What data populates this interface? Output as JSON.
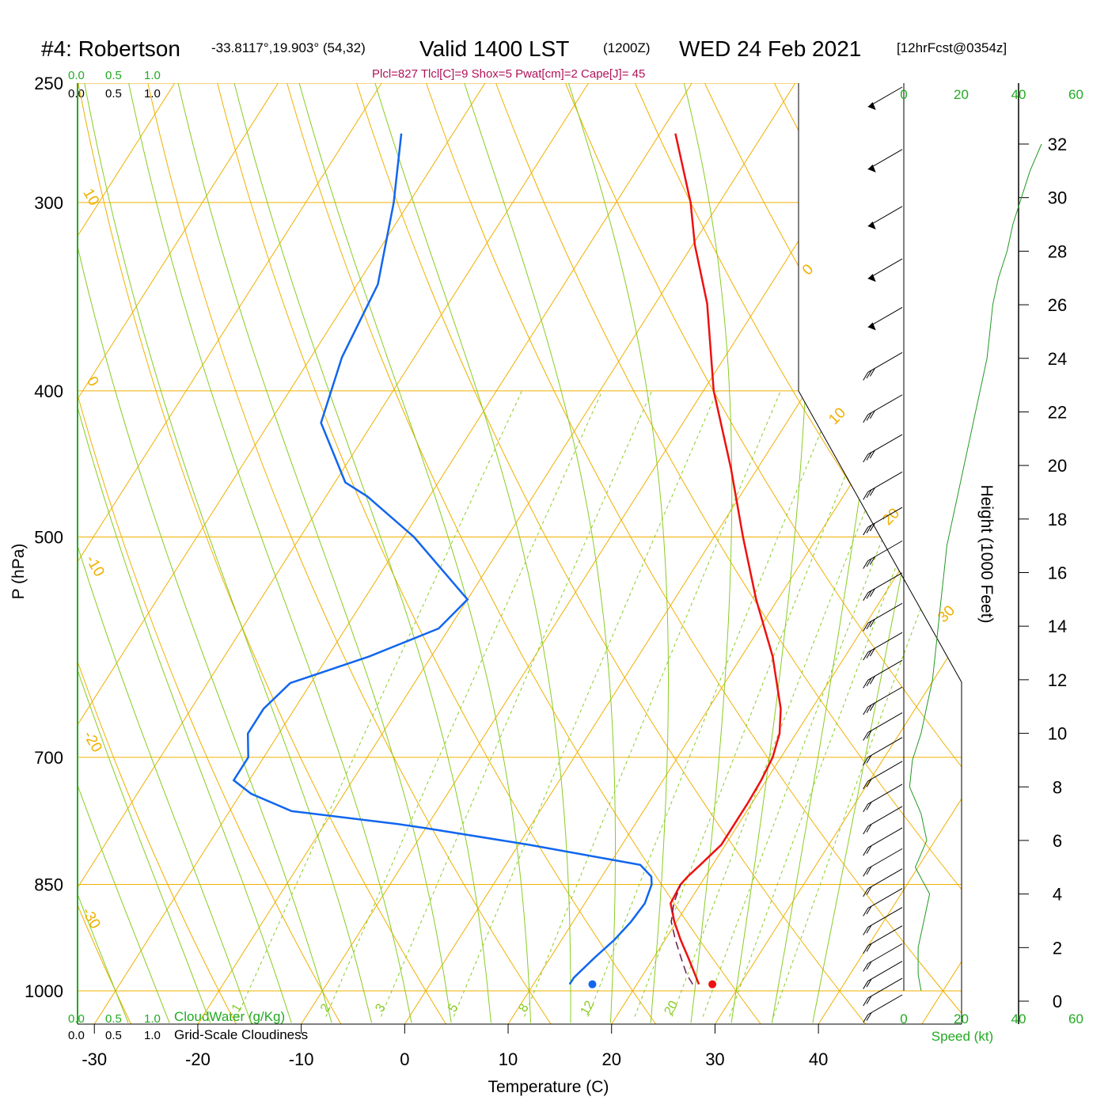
{
  "title": {
    "station": "#4: Robertson",
    "coords": "-33.8117°,19.903° (54,32)",
    "valid": "Valid 1400 LST",
    "utc": "(1200Z)",
    "date": "WED 24 Feb 2021",
    "forecast": "[12hrFcst@0354z]"
  },
  "params_line": "Plcl=827 Tlcl[C]=9 Shox=5 Pwat[cm]=2 Cape[J]= 45",
  "cloud_scale_top": {
    "green": [
      "0.0",
      "0.5",
      "1.0"
    ],
    "black": [
      "0.0",
      "0.5",
      "1.0"
    ]
  },
  "cloud_scale_bottom": {
    "green": [
      "0.0",
      "0.5",
      "1.0"
    ],
    "black": [
      "0.0",
      "0.5",
      "1.0"
    ],
    "cloudwater_label": "CloudWater (g/Kg)",
    "cloudiness_label": "Grid-Scale Cloudiness"
  },
  "speed_axis": {
    "top_ticks": [
      "0",
      "20",
      "40",
      "60"
    ],
    "bottom_ticks": [
      "0",
      "20",
      "40",
      "60"
    ],
    "label": "Speed (kt)"
  },
  "colors": {
    "temperature": "#ee1111",
    "dewpoint": "#1166ee",
    "isotherm": "#f0b000",
    "dry_adiabat": "#f0b000",
    "moist_adiabat": "#88cc22",
    "mixing_ratio": "#88cc22",
    "parcel": "#6a1a4a",
    "wind_speed": "#229922"
  },
  "chart_data": {
    "type": "line",
    "subtype": "skew-T log-P sounding",
    "xlabel": "Temperature (C)",
    "ylabel": "P (hPa)",
    "y2label": "Height (1000 Feet)",
    "y_scale": "log",
    "y_ticks": [
      250,
      300,
      400,
      500,
      700,
      850,
      1000
    ],
    "x_ticks": [
      -30,
      -20,
      -10,
      0,
      10,
      20,
      30,
      40
    ],
    "height_ticks": [
      0,
      2,
      4,
      6,
      8,
      10,
      12,
      14,
      16,
      18,
      20,
      22,
      24,
      26,
      28,
      30,
      32
    ],
    "isotherm_labels": [
      "10",
      "0",
      "-10",
      "-20",
      "-30",
      "0",
      "10",
      "20",
      "30"
    ],
    "mixing_ratio_labels": [
      "1",
      "2",
      "3",
      "5",
      "8",
      "12",
      "20"
    ],
    "temperature": {
      "p": [
        990,
        975,
        950,
        925,
        900,
        875,
        850,
        840,
        825,
        800,
        775,
        750,
        725,
        700,
        675,
        650,
        600,
        550,
        500,
        450,
        400,
        350,
        320,
        300,
        270
      ],
      "t": [
        26,
        25,
        23.3,
        21.5,
        19.8,
        18.3,
        18.1,
        18.3,
        18.8,
        19.6,
        19.6,
        19.6,
        19.5,
        19.2,
        18.4,
        17,
        13,
        7.9,
        2.8,
        -2.6,
        -9,
        -15,
        -19.8,
        -22.8,
        -28.5
      ]
    },
    "dewpoint": {
      "p": [
        990,
        980,
        950,
        925,
        900,
        875,
        850,
        840,
        825,
        800,
        780,
        775,
        760,
        740,
        725,
        700,
        675,
        650,
        625,
        600,
        575,
        550,
        500,
        470,
        460,
        420,
        380,
        340,
        300,
        270
      ],
      "td": [
        13.5,
        13.5,
        14.3,
        15.1,
        15.6,
        15.8,
        15.3,
        14.8,
        13,
        1,
        -10,
        -13,
        -24,
        -29,
        -31.5,
        -31.5,
        -33,
        -33,
        -32,
        -26,
        -21,
        -20,
        -29,
        -36,
        -39,
        -45,
        -47,
        -48,
        -51.5,
        -55
      ]
    },
    "parcel": {
      "p": [
        990,
        975,
        950,
        925,
        900,
        875,
        850
      ],
      "t": [
        25.4,
        24.2,
        22.6,
        21,
        19.5,
        18.6,
        18.1
      ]
    },
    "surface_markers": {
      "temperature": 27.3,
      "dewpoint": 15.7,
      "pressure": 990
    },
    "wind_profile": {
      "heights_kft": [
        0.4,
        1,
        2,
        3,
        4,
        5,
        6,
        7,
        8,
        9,
        10,
        11,
        12,
        13,
        14,
        15,
        16,
        17,
        18,
        19,
        20,
        21,
        22,
        23,
        24,
        25,
        26,
        27,
        28,
        29,
        30,
        31,
        32
      ],
      "speed_kt": [
        6,
        5,
        5,
        7,
        9,
        4,
        8,
        6,
        2,
        3,
        6,
        8,
        10,
        11,
        12,
        13,
        14,
        15,
        17,
        19,
        21,
        23,
        25,
        27,
        29,
        30,
        31,
        33,
        36,
        38,
        41,
        44,
        48
      ]
    }
  }
}
